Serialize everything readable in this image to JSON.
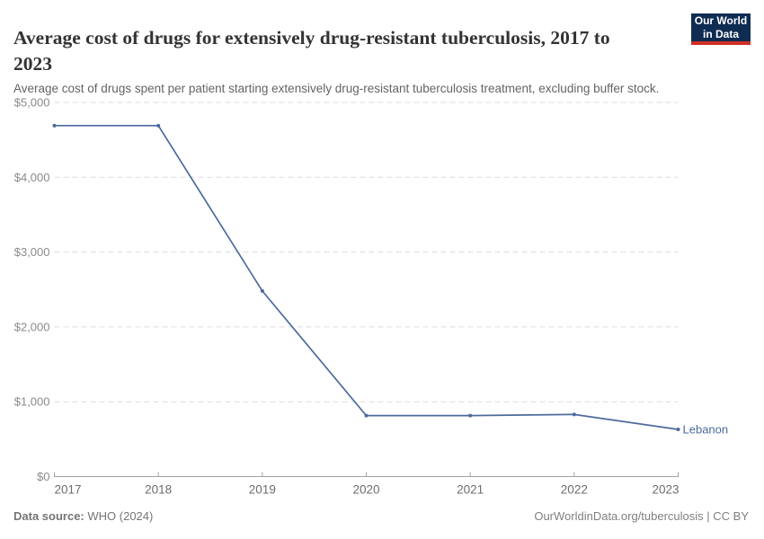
{
  "header": {
    "title": "Average cost of drugs for extensively drug-resistant tuberculosis, 2017 to 2023",
    "subtitle": "Average cost of drugs spent per patient starting extensively drug-resistant tuberculosis treatment, excluding buffer stock."
  },
  "logo": {
    "line1": "Our World",
    "line2": "in Data",
    "bg_color": "#0f2c52",
    "bar_color": "#cf2f25"
  },
  "chart_data": {
    "type": "line",
    "title": "Average cost of drugs for extensively drug-resistant tuberculosis, 2017 to 2023",
    "xlabel": "",
    "ylabel": "",
    "x": [
      2017,
      2018,
      2019,
      2020,
      2021,
      2022,
      2023
    ],
    "series": [
      {
        "name": "Lebanon",
        "color": "#4c6a9c",
        "values": [
          4690,
          4690,
          2480,
          815,
          815,
          830,
          630
        ]
      }
    ],
    "ylim": [
      0,
      5000
    ],
    "yticks": [
      0,
      1000,
      2000,
      3000,
      4000,
      5000
    ],
    "ytick_labels": [
      "$0",
      "$1,000",
      "$2,000",
      "$3,000",
      "$4,000",
      "$5,000"
    ],
    "grid": "horizontal-dashed",
    "legend_position": "line-end-label"
  },
  "footer": {
    "source_label": "Data source:",
    "source_value": "WHO (2024)",
    "rights": "OurWorldinData.org/tuberculosis | CC BY"
  }
}
